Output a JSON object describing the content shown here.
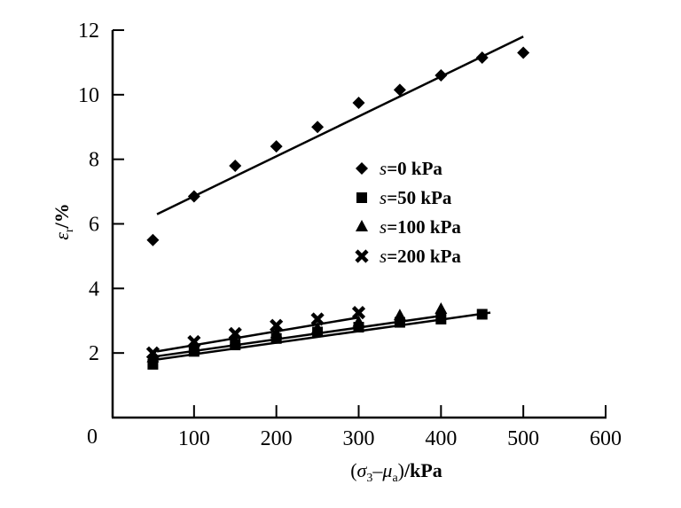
{
  "chart_data": {
    "type": "scatter",
    "title": "",
    "xlabel": {
      "open": "(",
      "sigma": "σ",
      "sigma_sub": "3",
      "minus": "–",
      "mu": "μ",
      "mu_sub": "a",
      "close": ")",
      "unit": "/kPa"
    },
    "ylabel": {
      "eps": "ε",
      "eps_sub": "r",
      "unit": "/%"
    },
    "xlim": [
      0,
      600
    ],
    "ylim": [
      0,
      12
    ],
    "xticks": [
      0,
      100,
      200,
      300,
      400,
      500,
      600
    ],
    "yticks": [
      0,
      2,
      4,
      6,
      8,
      10,
      12
    ],
    "xtick_labels": [
      "100",
      "200",
      "300",
      "400",
      "500",
      "600"
    ],
    "ytick_labels": [
      "2",
      "4",
      "6",
      "8",
      "10",
      "12"
    ],
    "origin_label": "0",
    "grid": false,
    "legend_position": "center-right",
    "series": [
      {
        "name": "s=0 kPa",
        "legend_prefix": "s",
        "legend_suffix": "=0 kPa",
        "marker": "diamond",
        "color": "#000000",
        "x": [
          50,
          100,
          150,
          200,
          250,
          300,
          350,
          400,
          450,
          500
        ],
        "y": [
          5.5,
          6.85,
          7.8,
          8.4,
          9.0,
          9.75,
          10.15,
          10.6,
          11.15,
          11.3
        ],
        "fit_line": {
          "x": [
            55,
            500
          ],
          "y": [
            6.3,
            11.8
          ]
        }
      },
      {
        "name": "s=50 kPa",
        "legend_prefix": "s",
        "legend_suffix": "=50 kPa",
        "marker": "square",
        "color": "#000000",
        "x": [
          50,
          100,
          150,
          200,
          250,
          300,
          350,
          400,
          450
        ],
        "y": [
          1.65,
          2.05,
          2.25,
          2.45,
          2.65,
          2.8,
          2.95,
          3.05,
          3.2
        ],
        "fit_line": {
          "x": [
            55,
            460
          ],
          "y": [
            1.8,
            3.25
          ]
        }
      },
      {
        "name": "s=100 kPa",
        "legend_prefix": "s",
        "legend_suffix": "=100 kPa",
        "marker": "triangle",
        "color": "#000000",
        "x": [
          50,
          100,
          150,
          200,
          250,
          300,
          350,
          400
        ],
        "y": [
          1.85,
          2.15,
          2.35,
          2.6,
          2.75,
          2.95,
          3.15,
          3.35
        ],
        "fit_line": {
          "x": [
            55,
            400
          ],
          "y": [
            1.9,
            3.15
          ]
        }
      },
      {
        "name": "s=200 kPa",
        "legend_prefix": "s",
        "legend_suffix": "=200 kPa",
        "marker": "x",
        "color": "#000000",
        "x": [
          50,
          100,
          150,
          200,
          250,
          300
        ],
        "y": [
          2.0,
          2.35,
          2.6,
          2.85,
          3.05,
          3.25
        ],
        "fit_line": {
          "x": [
            55,
            300
          ],
          "y": [
            2.05,
            3.1
          ]
        }
      }
    ]
  }
}
